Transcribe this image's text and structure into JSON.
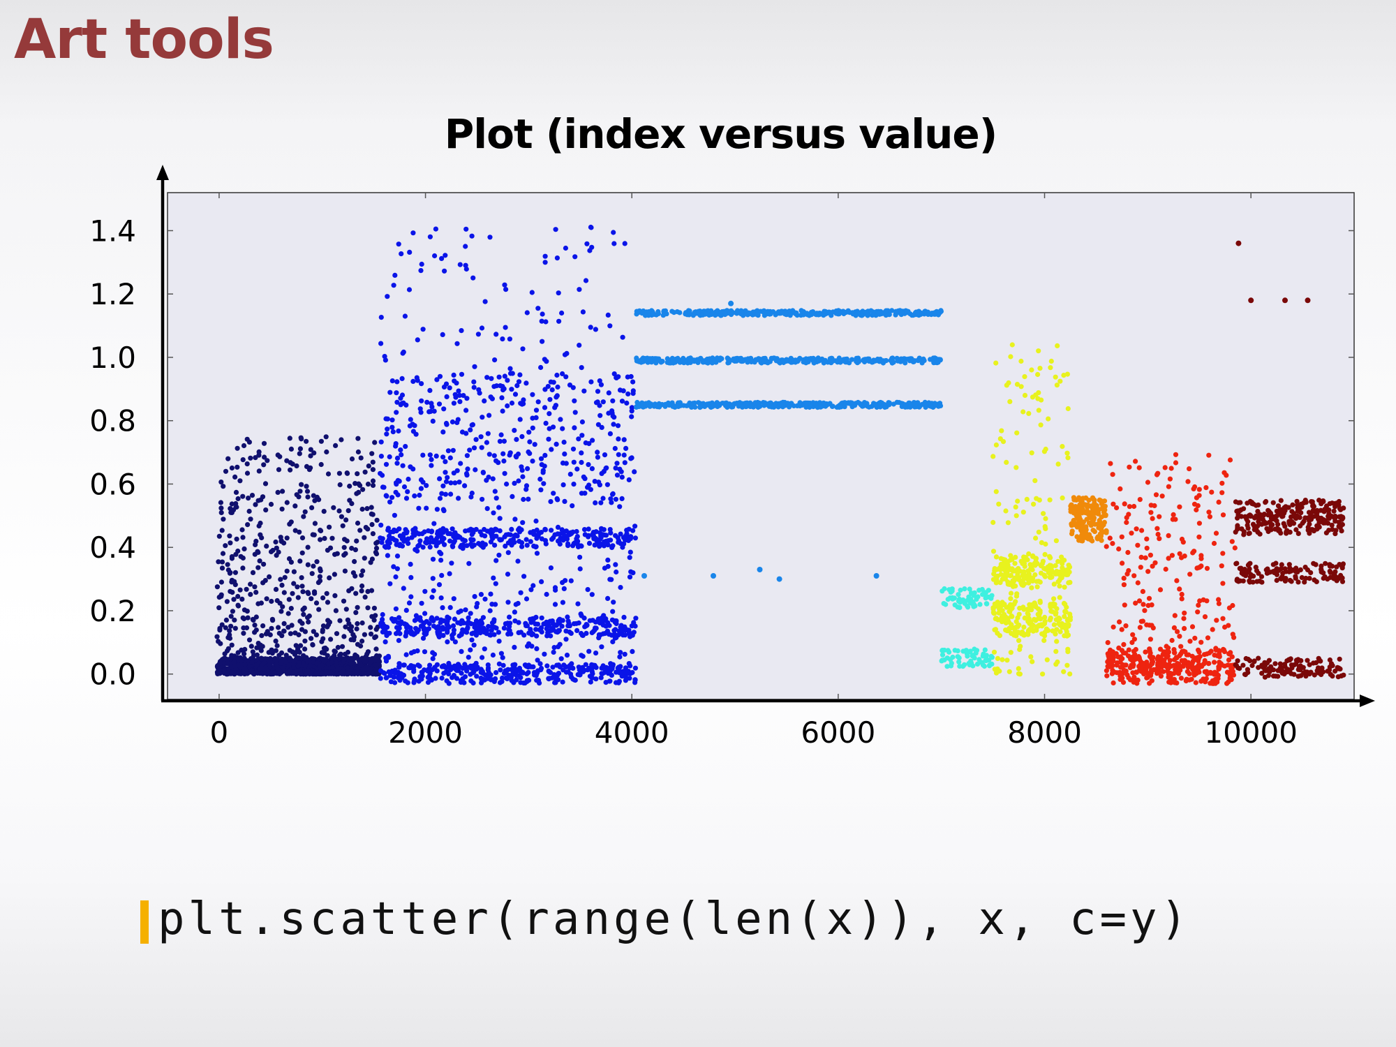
{
  "slide": {
    "title": "Art tools",
    "code": "plt.scatter(range(len(x)), x, c=y)",
    "code_bar_color": "#f5b000",
    "title_color": "#953a3a"
  },
  "chart_data": {
    "type": "scatter",
    "title": "Plot (index versus value)",
    "xlabel": "",
    "ylabel": "",
    "xlim": [
      -500,
      11000
    ],
    "ylim": [
      -0.08,
      1.52
    ],
    "xticks": [
      0,
      2000,
      4000,
      6000,
      8000,
      10000
    ],
    "xtick_labels": [
      "0",
      "2000",
      "4000",
      "6000",
      "8000",
      "10000"
    ],
    "yticks": [
      0.0,
      0.2,
      0.4,
      0.6,
      0.8,
      1.0,
      1.2,
      1.4
    ],
    "ytick_labels": [
      "0.0",
      "0.2",
      "0.4",
      "0.6",
      "0.8",
      "1.0",
      "1.2",
      "1.4"
    ],
    "grid": false,
    "legend": "none",
    "plot_background": "#e9e9f2",
    "colormap": "jet",
    "clusters": [
      {
        "x_range": [
          -20,
          1560
        ],
        "y_dense_range": [
          0.0,
          0.05
        ],
        "y_sparse_range": [
          0.0,
          0.75
        ],
        "color": "#10106e",
        "label_value": 0
      },
      {
        "x_range": [
          1560,
          4040
        ],
        "bands": [
          0.0,
          0.15,
          0.43,
          0.55,
          0.95
        ],
        "y_sparse_range": [
          0.0,
          1.43
        ],
        "color": "#0a14e8",
        "label_value": 1
      },
      {
        "x_range": [
          4040,
          7000
        ],
        "bands": [
          1.14,
          0.99,
          0.85
        ],
        "outliers": [
          [
            4120,
            0.31
          ],
          [
            4790,
            0.31
          ],
          [
            5240,
            0.33
          ],
          [
            5430,
            0.3
          ],
          [
            6370,
            0.31
          ],
          [
            4960,
            1.17
          ]
        ],
        "color": "#1985ea",
        "label_value": 2
      },
      {
        "x_range": [
          7000,
          7500
        ],
        "bands": [
          0.24,
          0.05
        ],
        "color": "#3ef0e0",
        "label_value": 3
      },
      {
        "x_range": [
          7500,
          8250
        ],
        "bands": [
          0.15,
          0.2,
          0.3,
          0.35
        ],
        "y_sparse_range": [
          0.0,
          1.05
        ],
        "color": "#e8f21e",
        "label_value": 4
      },
      {
        "x_range": [
          8250,
          8600
        ],
        "bands": [
          0.45,
          0.5,
          0.53
        ],
        "color": "#f08a0a",
        "label_value": 5
      },
      {
        "x_range": [
          8600,
          9850
        ],
        "bands": [
          0.0,
          0.05
        ],
        "y_sparse_range": [
          0.0,
          0.7
        ],
        "color": "#ee2410",
        "label_value": 6
      },
      {
        "x_range": [
          9850,
          10900
        ],
        "bands": [
          0.02,
          0.32,
          0.47,
          0.52
        ],
        "outliers": [
          [
            9880,
            1.36
          ],
          [
            10000,
            1.18
          ],
          [
            10330,
            1.18
          ],
          [
            10550,
            1.18
          ]
        ],
        "color": "#7a0808",
        "label_value": 7
      }
    ]
  }
}
